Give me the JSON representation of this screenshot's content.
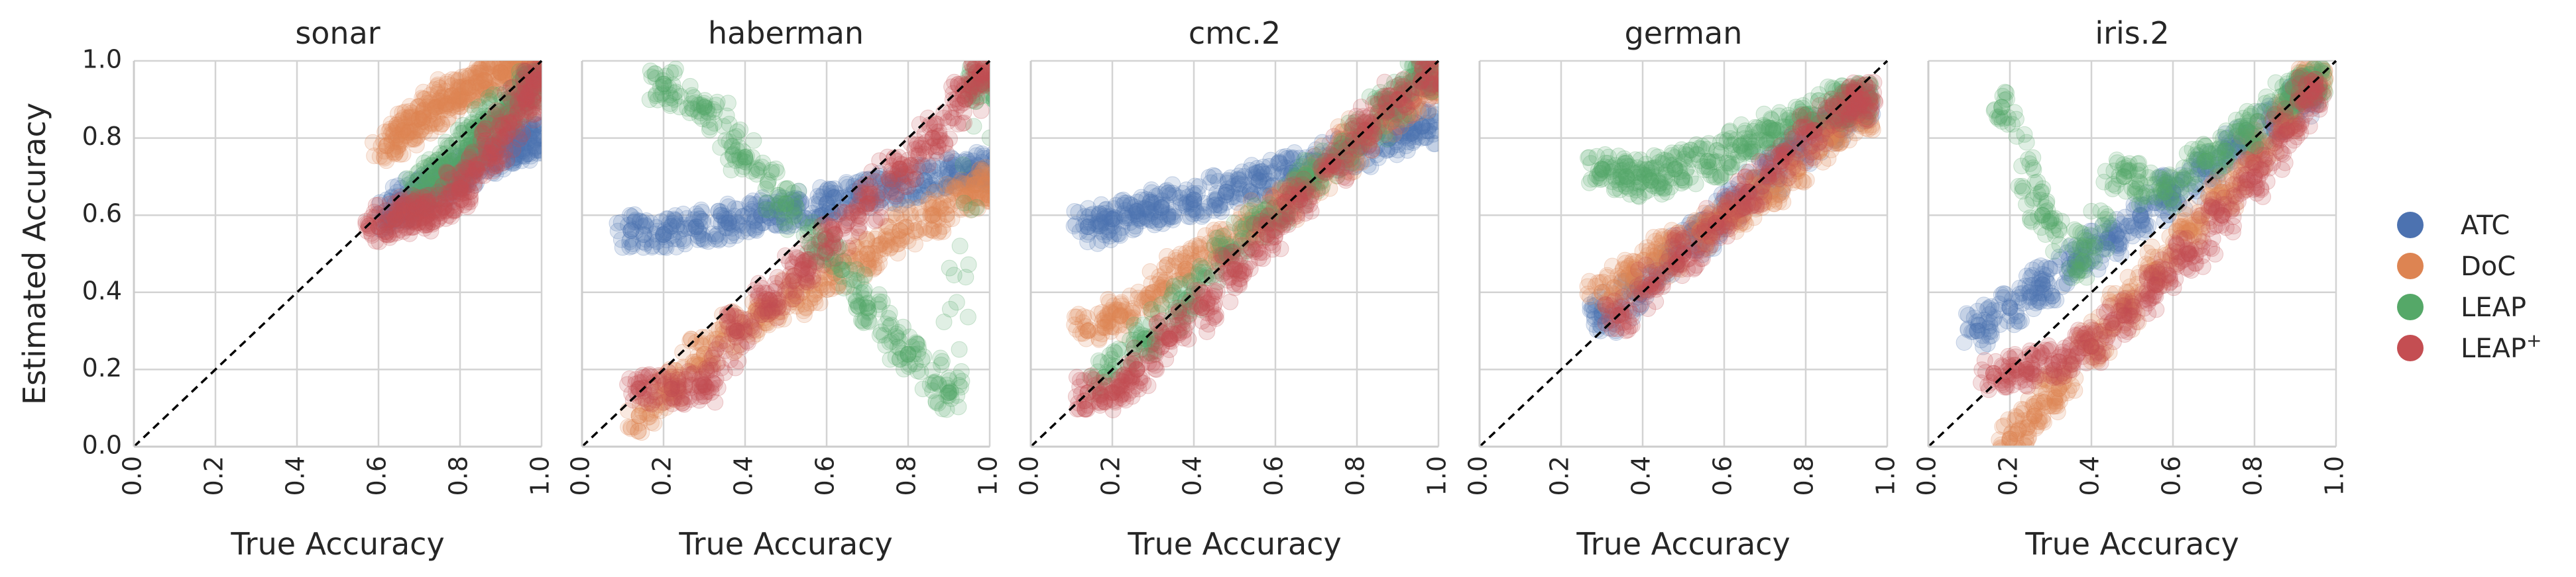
{
  "chart_data": [
    {
      "type": "scatter",
      "title": "sonar",
      "xlabel": "True Accuracy",
      "ylabel": "Estimated Accuracy",
      "xlim": [
        0.0,
        1.0
      ],
      "ylim": [
        0.0,
        1.0
      ],
      "series": [
        {
          "name": "ATC",
          "x": [
            0.62,
            0.66,
            0.7,
            0.74,
            0.78,
            0.82,
            0.86,
            0.9,
            0.94,
            0.97
          ],
          "y": [
            0.6,
            0.63,
            0.65,
            0.66,
            0.7,
            0.72,
            0.75,
            0.77,
            0.78,
            0.8
          ]
        },
        {
          "name": "DoC",
          "x": [
            0.62,
            0.66,
            0.7,
            0.74,
            0.78,
            0.82,
            0.86,
            0.9,
            0.94,
            0.98
          ],
          "y": [
            0.78,
            0.82,
            0.85,
            0.88,
            0.91,
            0.93,
            0.95,
            0.97,
            0.99,
            1.0
          ]
        },
        {
          "name": "LEAP",
          "x": [
            0.7,
            0.74,
            0.78,
            0.82,
            0.86,
            0.9,
            0.94,
            0.98
          ],
          "y": [
            0.66,
            0.7,
            0.74,
            0.78,
            0.83,
            0.87,
            0.9,
            0.93
          ]
        },
        {
          "name": "LEAP$^+$",
          "x": [
            0.6,
            0.64,
            0.68,
            0.72,
            0.76,
            0.8,
            0.84,
            0.88,
            0.92,
            0.96,
            0.99
          ],
          "y": [
            0.57,
            0.59,
            0.61,
            0.6,
            0.62,
            0.67,
            0.72,
            0.78,
            0.84,
            0.9,
            0.95
          ]
        }
      ]
    },
    {
      "type": "scatter",
      "title": "haberman",
      "xlabel": "True Accuracy",
      "ylabel": "",
      "xlim": [
        0.0,
        1.0
      ],
      "ylim": [
        0.0,
        1.0
      ],
      "series": [
        {
          "name": "ATC",
          "x": [
            0.12,
            0.2,
            0.28,
            0.36,
            0.44,
            0.52,
            0.6,
            0.68,
            0.76,
            0.84,
            0.92,
            0.98
          ],
          "y": [
            0.56,
            0.55,
            0.57,
            0.58,
            0.6,
            0.61,
            0.63,
            0.65,
            0.67,
            0.69,
            0.71,
            0.72
          ]
        },
        {
          "name": "DoC",
          "x": [
            0.14,
            0.22,
            0.3,
            0.38,
            0.46,
            0.54,
            0.62,
            0.7,
            0.78,
            0.86,
            0.94,
            0.99
          ],
          "y": [
            0.08,
            0.16,
            0.24,
            0.3,
            0.36,
            0.4,
            0.45,
            0.5,
            0.56,
            0.6,
            0.65,
            0.68
          ]
        },
        {
          "name": "LEAP",
          "x": [
            0.2,
            0.3,
            0.4,
            0.5,
            0.6,
            0.7,
            0.8,
            0.9,
            0.98
          ],
          "y": [
            0.94,
            0.88,
            0.75,
            0.63,
            0.5,
            0.36,
            0.24,
            0.14,
            0.94
          ]
        },
        {
          "name": "LEAP$^+$",
          "x": [
            0.14,
            0.22,
            0.3,
            0.38,
            0.46,
            0.54,
            0.62,
            0.7,
            0.78,
            0.86,
            0.94,
            0.99
          ],
          "y": [
            0.15,
            0.15,
            0.16,
            0.3,
            0.38,
            0.46,
            0.55,
            0.63,
            0.72,
            0.8,
            0.9,
            0.97
          ]
        }
      ]
    },
    {
      "type": "scatter",
      "title": "cmc.2",
      "xlabel": "True Accuracy",
      "ylabel": "",
      "xlim": [
        0.0,
        1.0
      ],
      "ylim": [
        0.0,
        1.0
      ],
      "series": [
        {
          "name": "ATC",
          "x": [
            0.14,
            0.2,
            0.26,
            0.32,
            0.4,
            0.48,
            0.56,
            0.64,
            0.72,
            0.8,
            0.88,
            0.96
          ],
          "y": [
            0.57,
            0.59,
            0.61,
            0.62,
            0.64,
            0.66,
            0.69,
            0.71,
            0.74,
            0.77,
            0.8,
            0.83
          ]
        },
        {
          "name": "DoC",
          "x": [
            0.14,
            0.22,
            0.3,
            0.38,
            0.46,
            0.54,
            0.62,
            0.7,
            0.78,
            0.86,
            0.94,
            0.99
          ],
          "y": [
            0.3,
            0.34,
            0.4,
            0.46,
            0.52,
            0.57,
            0.63,
            0.7,
            0.78,
            0.85,
            0.9,
            0.95
          ]
        },
        {
          "name": "LEAP",
          "x": [
            0.18,
            0.28,
            0.38,
            0.48,
            0.58,
            0.68,
            0.78,
            0.88,
            0.96
          ],
          "y": [
            0.18,
            0.28,
            0.38,
            0.5,
            0.58,
            0.7,
            0.78,
            0.88,
            0.96
          ]
        },
        {
          "name": "LEAP$^+$",
          "x": [
            0.14,
            0.2,
            0.26,
            0.34,
            0.42,
            0.5,
            0.58,
            0.66,
            0.74,
            0.82,
            0.9,
            0.98
          ],
          "y": [
            0.14,
            0.14,
            0.2,
            0.28,
            0.36,
            0.46,
            0.55,
            0.64,
            0.73,
            0.82,
            0.9,
            0.97
          ]
        }
      ]
    },
    {
      "type": "scatter",
      "title": "german",
      "xlabel": "True Accuracy",
      "ylabel": "",
      "xlim": [
        0.0,
        1.0
      ],
      "ylim": [
        0.0,
        1.0
      ],
      "series": [
        {
          "name": "ATC",
          "x": [
            0.3,
            0.38,
            0.46,
            0.54,
            0.62,
            0.7,
            0.78,
            0.86,
            0.93
          ],
          "y": [
            0.34,
            0.4,
            0.48,
            0.55,
            0.62,
            0.7,
            0.77,
            0.83,
            0.88
          ]
        },
        {
          "name": "DoC",
          "x": [
            0.3,
            0.38,
            0.46,
            0.54,
            0.62,
            0.7,
            0.78,
            0.86,
            0.93
          ],
          "y": [
            0.4,
            0.44,
            0.5,
            0.56,
            0.6,
            0.66,
            0.72,
            0.8,
            0.86
          ]
        },
        {
          "name": "LEAP",
          "x": [
            0.3,
            0.36,
            0.42,
            0.48,
            0.56,
            0.64,
            0.72,
            0.8,
            0.88,
            0.93
          ],
          "y": [
            0.72,
            0.7,
            0.69,
            0.72,
            0.74,
            0.78,
            0.82,
            0.86,
            0.89,
            0.9
          ]
        },
        {
          "name": "LEAP$^+$",
          "x": [
            0.34,
            0.42,
            0.5,
            0.58,
            0.66,
            0.74,
            0.82,
            0.9,
            0.94
          ],
          "y": [
            0.34,
            0.42,
            0.5,
            0.58,
            0.66,
            0.74,
            0.82,
            0.88,
            0.9
          ]
        }
      ]
    },
    {
      "type": "scatter",
      "title": "iris.2",
      "xlabel": "True Accuracy",
      "ylabel": "",
      "xlim": [
        0.0,
        1.0
      ],
      "ylim": [
        0.0,
        1.0
      ],
      "series": [
        {
          "name": "ATC",
          "x": [
            0.12,
            0.2,
            0.28,
            0.36,
            0.44,
            0.52,
            0.6,
            0.68,
            0.76,
            0.84,
            0.92
          ],
          "y": [
            0.3,
            0.36,
            0.42,
            0.48,
            0.54,
            0.6,
            0.66,
            0.72,
            0.78,
            0.84,
            0.9
          ]
        },
        {
          "name": "DoC",
          "x": [
            0.2,
            0.26,
            0.32,
            0.4,
            0.48,
            0.56,
            0.64,
            0.72,
            0.8,
            0.88,
            0.94
          ],
          "y": [
            0.02,
            0.08,
            0.15,
            0.26,
            0.36,
            0.46,
            0.56,
            0.66,
            0.76,
            0.86,
            0.94
          ]
        },
        {
          "name": "LEAP",
          "x": [
            0.18,
            0.28,
            0.38,
            0.48,
            0.58,
            0.68,
            0.78,
            0.88,
            0.94
          ],
          "y": [
            0.88,
            0.6,
            0.48,
            0.7,
            0.66,
            0.74,
            0.82,
            0.9,
            0.94
          ]
        },
        {
          "name": "LEAP$^+$",
          "x": [
            0.16,
            0.24,
            0.32,
            0.4,
            0.48,
            0.56,
            0.64,
            0.72,
            0.8,
            0.88,
            0.94
          ],
          "y": [
            0.19,
            0.2,
            0.22,
            0.26,
            0.34,
            0.42,
            0.5,
            0.6,
            0.7,
            0.82,
            0.92
          ]
        }
      ]
    }
  ],
  "ticks": [
    "0.0",
    "0.2",
    "0.4",
    "0.6",
    "0.8",
    "1.0"
  ],
  "legend": {
    "placement": "right",
    "items": [
      {
        "label": "ATC",
        "color": "#4c72b0"
      },
      {
        "label": "DoC",
        "color": "#dd8452"
      },
      {
        "label": "LEAP",
        "color": "#55a868"
      },
      {
        "label": "LEAP",
        "sup": "+",
        "color": "#c44e52"
      }
    ]
  },
  "style": {
    "grid": true,
    "diagonal": "dashed",
    "background": "#ffffff"
  }
}
